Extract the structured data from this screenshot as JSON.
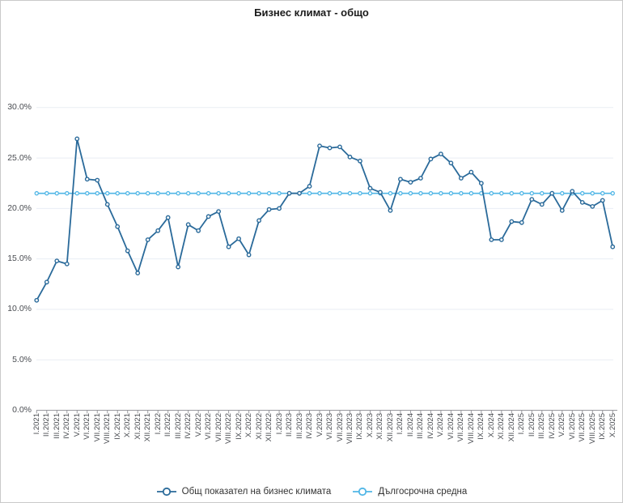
{
  "title": "Бизнес климат - общо",
  "chart_data": {
    "type": "line",
    "title": "Бизнес климат - общо",
    "categories": [
      "I.2021",
      "II.2021",
      "III.2021",
      "IV.2021",
      "V.2021",
      "VI.2021",
      "VII.2021",
      "VIII.2021",
      "IX.2021",
      "X.2021",
      "XI.2021",
      "XII.2021",
      "I.2022",
      "II.2022",
      "III.2022",
      "IV.2022",
      "V.2022",
      "VI.2022",
      "VII.2022",
      "VIII.2022",
      "IX.2022",
      "X.2022",
      "XI.2022",
      "XII.2022",
      "I.2023",
      "II.2023",
      "III.2023",
      "IV.2023",
      "V.2023",
      "VI.2023",
      "VII.2023",
      "VIII.2023",
      "IX.2023",
      "X.2023",
      "XI.2023",
      "XII.2023",
      "I.2024",
      "II.2024",
      "III.2024",
      "IV.2024",
      "V.2024",
      "VI.2024",
      "VII.2024",
      "VIII.2024",
      "IX.2024",
      "X.2024",
      "XI.2024",
      "XII.2024",
      "I.2025",
      "II.2025",
      "III.2025",
      "IV.2025",
      "V.2025",
      "VI.2025",
      "VII.2025",
      "VIII.2025",
      "IX.2025",
      "X.2025"
    ],
    "series": [
      {
        "name": "Общ показател на бизнес климата",
        "color": "#2a6a9a",
        "values": [
          10.9,
          12.7,
          14.8,
          14.5,
          26.9,
          22.9,
          22.8,
          20.4,
          18.2,
          15.8,
          13.6,
          16.9,
          17.8,
          19.1,
          14.2,
          18.4,
          17.8,
          19.2,
          19.7,
          16.2,
          17.0,
          15.4,
          18.8,
          19.9,
          20.0,
          21.5,
          21.5,
          22.2,
          26.2,
          26.0,
          26.1,
          25.1,
          24.7,
          22.0,
          21.6,
          19.8,
          22.9,
          22.6,
          23.0,
          24.9,
          25.4,
          24.5,
          23.0,
          23.6,
          22.5,
          16.9,
          16.9,
          18.7,
          18.6,
          20.9,
          20.4,
          21.5,
          19.8,
          21.7,
          20.6,
          20.2,
          20.8,
          16.2
        ]
      },
      {
        "name": "Дългосрочна средна",
        "color": "#50b6e6",
        "constant_value": 21.5
      }
    ],
    "xlabel": "",
    "ylabel": "",
    "y_ticks": [
      "0.0%",
      "5.0%",
      "10.0%",
      "15.0%",
      "20.0%",
      "25.0%",
      "30.0%"
    ],
    "y_tick_values": [
      0,
      5,
      10,
      15,
      20,
      25,
      30
    ],
    "ylim": [
      0,
      36
    ],
    "grid": true,
    "legend_position": "bottom",
    "colors": {
      "gridline": "#e9eef4",
      "axis": "#98989d",
      "tick_label": "#4a4d52"
    }
  },
  "legend": {
    "items": [
      {
        "label": "Общ показател на бизнес климата",
        "color": "#2a6a9a"
      },
      {
        "label": "Дългосрочна средна",
        "color": "#50b6e6"
      }
    ]
  }
}
